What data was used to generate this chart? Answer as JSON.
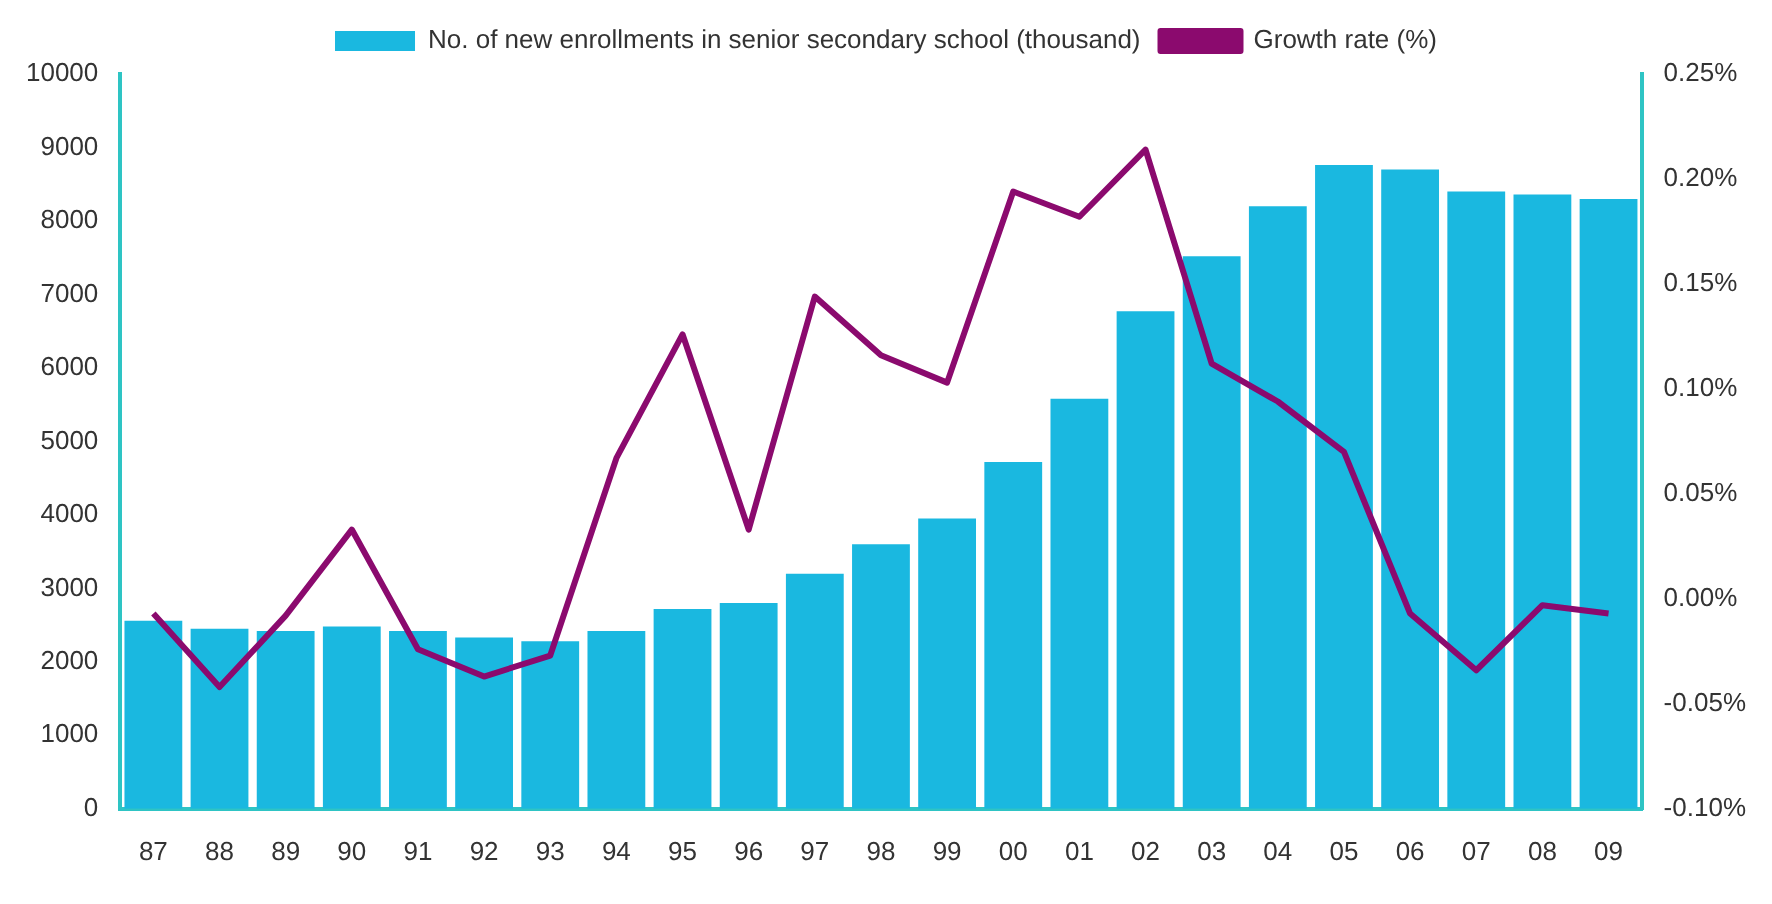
{
  "chart_data": {
    "type": "bar",
    "categories": [
      "87",
      "88",
      "89",
      "90",
      "91",
      "92",
      "93",
      "94",
      "95",
      "96",
      "97",
      "98",
      "99",
      "00",
      "01",
      "02",
      "03",
      "04",
      "05",
      "06",
      "07",
      "08",
      "09"
    ],
    "series": [
      {
        "name": "No. of new enrollments in senior secondary school (thousand)",
        "color": "#1ab8e0",
        "values": [
          2560,
          2450,
          2420,
          2480,
          2420,
          2330,
          2280,
          2420,
          2720,
          2800,
          3200,
          3600,
          3950,
          4720,
          5580,
          6770,
          7520,
          8200,
          8760,
          8700,
          8400,
          8360,
          8300
        ]
      },
      {
        "name": "Growth rate (%)",
        "type": "line",
        "axis": "y2",
        "color": "#8b0a6e",
        "values": [
          -0.007,
          -0.042,
          -0.008,
          0.033,
          -0.024,
          -0.037,
          -0.027,
          0.067,
          0.126,
          0.033,
          0.144,
          0.116,
          0.103,
          0.194,
          0.182,
          0.214,
          0.112,
          0.094,
          0.07,
          -0.007,
          -0.034,
          -0.003,
          -0.007
        ]
      }
    ],
    "ylim": [
      0,
      10000
    ],
    "yticks": [
      0,
      1000,
      2000,
      3000,
      4000,
      5000,
      6000,
      7000,
      8000,
      9000,
      10000
    ],
    "y2lim": [
      -0.1,
      0.25
    ],
    "y2ticks": [
      {
        "value": -0.1,
        "label": "-0.10%"
      },
      {
        "value": -0.05,
        "label": "-0.05%"
      },
      {
        "value": 0,
        "label": "0.00%"
      },
      {
        "value": 0.05,
        "label": "0.05%"
      },
      {
        "value": 0.1,
        "label": "0.10%"
      },
      {
        "value": 0.15,
        "label": "0.15%"
      },
      {
        "value": 0.2,
        "label": "0.20%"
      },
      {
        "value": 0.25,
        "label": "0.25%"
      }
    ],
    "grid": false,
    "legend": "top",
    "marker": "none",
    "line_style": "solid"
  }
}
